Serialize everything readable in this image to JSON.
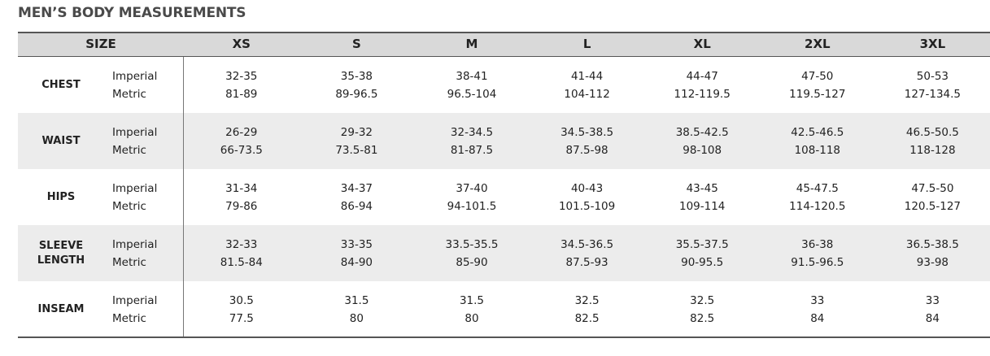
{
  "title": "MEN’S BODY MEASUREMENTS",
  "table": {
    "corner": "SIZE",
    "sizes": [
      "XS",
      "S",
      "M",
      "L",
      "XL",
      "2XL",
      "3XL"
    ],
    "rows": [
      {
        "label": "CHEST",
        "units": [
          "Imperial",
          "Metric"
        ],
        "values": [
          [
            "32-35",
            "81-89"
          ],
          [
            "35-38",
            "89-96.5"
          ],
          [
            "38-41",
            "96.5-104"
          ],
          [
            "41-44",
            "104-112"
          ],
          [
            "44-47",
            "112-119.5"
          ],
          [
            "47-50",
            "119.5-127"
          ],
          [
            "50-53",
            "127-134.5"
          ]
        ]
      },
      {
        "label": "WAIST",
        "units": [
          "Imperial",
          "Metric"
        ],
        "values": [
          [
            "26-29",
            "66-73.5"
          ],
          [
            "29-32",
            "73.5-81"
          ],
          [
            "32-34.5",
            "81-87.5"
          ],
          [
            "34.5-38.5",
            "87.5-98"
          ],
          [
            "38.5-42.5",
            "98-108"
          ],
          [
            "42.5-46.5",
            "108-118"
          ],
          [
            "46.5-50.5",
            "118-128"
          ]
        ]
      },
      {
        "label": "HIPS",
        "units": [
          "Imperial",
          "Metric"
        ],
        "values": [
          [
            "31-34",
            "79-86"
          ],
          [
            "34-37",
            "86-94"
          ],
          [
            "37-40",
            "94-101.5"
          ],
          [
            "40-43",
            "101.5-109"
          ],
          [
            "43-45",
            "109-114"
          ],
          [
            "45-47.5",
            "114-120.5"
          ],
          [
            "47.5-50",
            "120.5-127"
          ]
        ]
      },
      {
        "label": "SLEEVE LENGTH",
        "units": [
          "Imperial",
          "Metric"
        ],
        "values": [
          [
            "32-33",
            "81.5-84"
          ],
          [
            "33-35",
            "84-90"
          ],
          [
            "33.5-35.5",
            "85-90"
          ],
          [
            "34.5-36.5",
            "87.5-93"
          ],
          [
            "35.5-37.5",
            "90-95.5"
          ],
          [
            "36-38",
            "91.5-96.5"
          ],
          [
            "36.5-38.5",
            "93-98"
          ]
        ]
      },
      {
        "label": "INSEAM",
        "units": [
          "Imperial",
          "Metric"
        ],
        "values": [
          [
            "30.5",
            "77.5"
          ],
          [
            "31.5",
            "80"
          ],
          [
            "31.5",
            "80"
          ],
          [
            "32.5",
            "82.5"
          ],
          [
            "32.5",
            "82.5"
          ],
          [
            "33",
            "84"
          ],
          [
            "33",
            "84"
          ]
        ]
      }
    ]
  }
}
